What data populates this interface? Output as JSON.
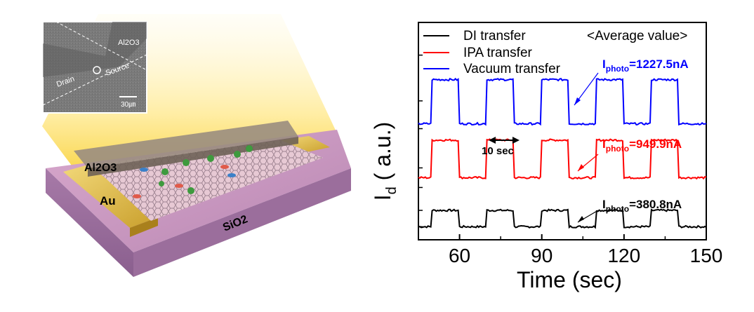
{
  "illustration": {
    "inset_labels": {
      "material": "Al2O3",
      "drain": "Drain",
      "source": "Source",
      "scale": "30㎛"
    },
    "layer_labels": {
      "passivation": "Al2O3",
      "electrode": "Au",
      "substrate": "SiO2"
    }
  },
  "chart_data": {
    "type": "line",
    "xlabel": "Time (sec)",
    "ylabel": "I_d ( a.u.)",
    "ylabel_main": "I",
    "ylabel_sub": "d",
    "ylabel_rest": " ( a.u.)",
    "xlim": [
      45,
      150
    ],
    "xticks": [
      "60",
      "90",
      "120",
      "150"
    ],
    "xtick_values": [
      60,
      90,
      120,
      150
    ],
    "grid": false,
    "legend_position": "top-left",
    "on_off_cycle": {
      "first_on": 50,
      "on_duration": 10,
      "period": 20,
      "cycles": 5
    },
    "series": [
      {
        "name": "DI transfer",
        "color": "#000000",
        "off_level": 0.0,
        "on_level": 1.0,
        "photocurrent_label": "I",
        "photocurrent_sub": "photo",
        "photocurrent_value": "=380.8nA"
      },
      {
        "name": "IPA transfer",
        "color": "#ff0000",
        "off_level": 3.0,
        "on_level": 5.3,
        "photocurrent_label": "I",
        "photocurrent_sub": "photo",
        "photocurrent_value": "=949.9nA"
      },
      {
        "name": "Vacuum transfer",
        "color": "#0000ff",
        "off_level": 6.3,
        "on_level": 9.0,
        "photocurrent_label": "I",
        "photocurrent_sub": "photo",
        "photocurrent_value": "=1227.5nA"
      }
    ],
    "annotations": {
      "average_title": "<Average value>",
      "interval_label": "10 sec"
    }
  }
}
